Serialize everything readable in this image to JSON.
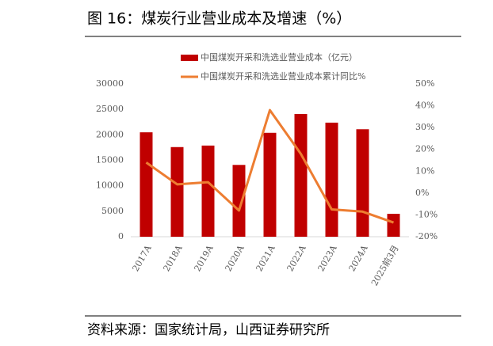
{
  "chart_data": {
    "type": "bar_line",
    "title": "图 16：煤炭行业营业成本及增速（%）",
    "source": "资料来源：国家统计局，山西证券研究所",
    "categories": [
      "2017A",
      "2018A",
      "2019A",
      "2020A",
      "2021A",
      "2022A",
      "2023A",
      "2024A",
      "2025前3月"
    ],
    "series": [
      {
        "name": "中国煤炭开采和洗选业营业成本（亿元）",
        "color": "#c00000",
        "type": "bar",
        "values": [
          20500,
          17600,
          17900,
          14100,
          20400,
          24100,
          22400,
          21100,
          4500
        ]
      },
      {
        "name": "中国煤炭开采和洗选业营业成本累计同比%",
        "color": "#ed7d31",
        "type": "line",
        "axis": "y2",
        "values": [
          14,
          4,
          5,
          -8,
          38,
          18,
          -7.5,
          -8.5,
          -13.5
        ]
      }
    ],
    "ylim": [
      0,
      30000
    ],
    "yticks": [
      0,
      5000,
      10000,
      15000,
      20000,
      25000,
      30000
    ],
    "y2lim": [
      -20,
      50
    ],
    "y2ticks": [
      {
        "value": -20,
        "label": "-20%"
      },
      {
        "value": -10,
        "label": "-10%"
      },
      {
        "value": 0,
        "label": "0%"
      },
      {
        "value": 10,
        "label": "10%"
      },
      {
        "value": 20,
        "label": "20%"
      },
      {
        "value": 30,
        "label": "30%"
      },
      {
        "value": 40,
        "label": "40%"
      },
      {
        "value": 50,
        "label": "50%"
      }
    ]
  }
}
